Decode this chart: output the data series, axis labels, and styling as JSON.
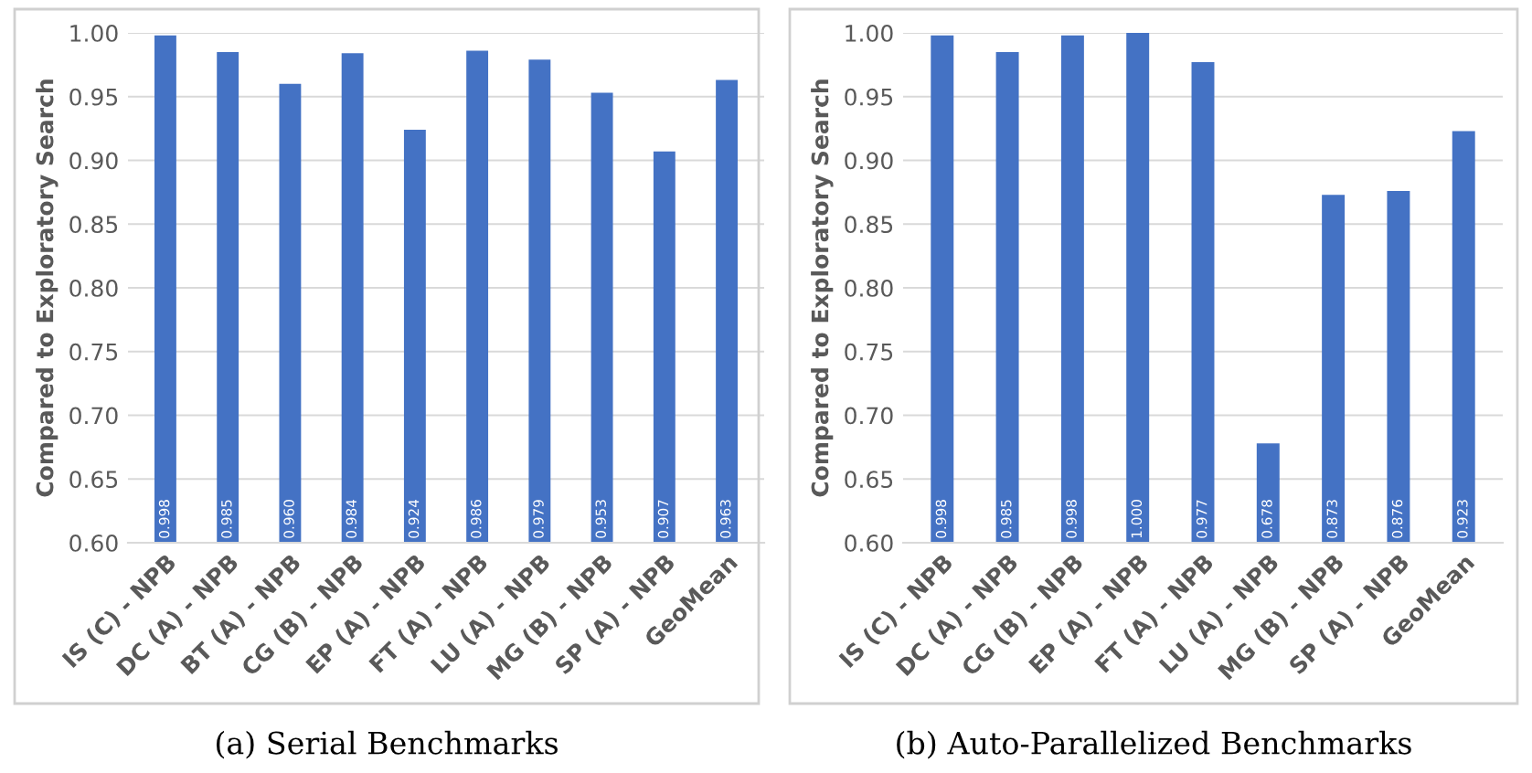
{
  "chart_data": [
    {
      "type": "bar",
      "title": "(a) Serial Benchmarks",
      "ylabel": "Compared to Exploratory Search",
      "categories": [
        "IS (C) - NPB",
        "DC (A) - NPB",
        "BT (A) - NPB",
        "CG (B) - NPB",
        "EP (A) - NPB",
        "FT (A) - NPB",
        "LU (A) - NPB",
        "MG (B) - NPB",
        "SP (A) - NPB",
        "GeoMean"
      ],
      "values": [
        0.998,
        0.985,
        0.96,
        0.984,
        0.924,
        0.986,
        0.979,
        0.953,
        0.907,
        0.963
      ],
      "value_labels": [
        "0.998",
        "0.985",
        "0.960",
        "0.984",
        "0.924",
        "0.986",
        "0.979",
        "0.953",
        "0.907",
        "0.963"
      ],
      "color": "#4472c4",
      "ylim": [
        0.6,
        1.0
      ],
      "yticks": [
        {
          "value": 0.6,
          "label": "0.60"
        },
        {
          "value": 0.65,
          "label": "0.65"
        },
        {
          "value": 0.7,
          "label": "0.70"
        },
        {
          "value": 0.75,
          "label": "0.75"
        },
        {
          "value": 0.8,
          "label": "0.80"
        },
        {
          "value": 0.85,
          "label": "0.85"
        },
        {
          "value": 0.9,
          "label": "0.90"
        },
        {
          "value": 0.95,
          "label": "0.95"
        },
        {
          "value": 1.0,
          "label": "1.00"
        }
      ],
      "grid": "y"
    },
    {
      "type": "bar",
      "title": "(b) Auto-Parallelized Benchmarks",
      "ylabel": "Compared to Exploratory Search",
      "categories": [
        "IS (C) - NPB",
        "DC (A) - NPB",
        "CG (B) - NPB",
        "EP (A) - NPB",
        "FT (A) - NPB",
        "LU (A) - NPB",
        "MG (B) - NPB",
        "SP (A) - NPB",
        "GeoMean"
      ],
      "values": [
        0.998,
        0.985,
        0.998,
        1.0,
        0.977,
        0.678,
        0.873,
        0.876,
        0.923
      ],
      "value_labels": [
        "0.998",
        "0.985",
        "0.998",
        "1.000",
        "0.977",
        "0.678",
        "0.873",
        "0.876",
        "0.923"
      ],
      "color": "#4472c4",
      "ylim": [
        0.6,
        1.0
      ],
      "yticks": [
        {
          "value": 0.6,
          "label": "0.60"
        },
        {
          "value": 0.65,
          "label": "0.65"
        },
        {
          "value": 0.7,
          "label": "0.70"
        },
        {
          "value": 0.75,
          "label": "0.75"
        },
        {
          "value": 0.8,
          "label": "0.80"
        },
        {
          "value": 0.85,
          "label": "0.85"
        },
        {
          "value": 0.9,
          "label": "0.90"
        },
        {
          "value": 0.95,
          "label": "0.95"
        },
        {
          "value": 1.0,
          "label": "1.00"
        }
      ],
      "grid": "y"
    }
  ]
}
